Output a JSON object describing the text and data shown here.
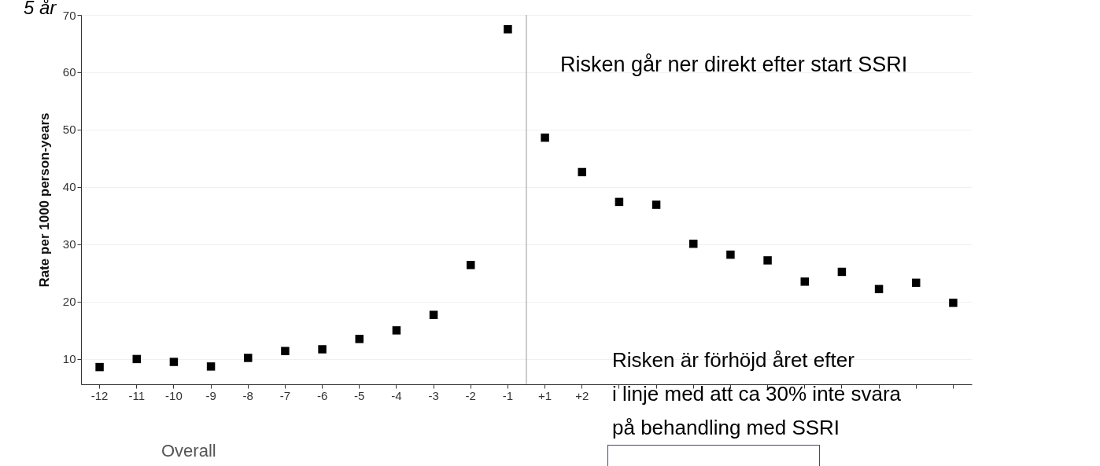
{
  "chart_data": {
    "type": "scatter",
    "xlabel": "Overall",
    "ylabel": "Rate per 1000 person-years",
    "categories": [
      "-12",
      "-11",
      "-10",
      "-9",
      "-8",
      "-7",
      "-6",
      "-5",
      "-4",
      "-3",
      "-2",
      "-1",
      "+1",
      "+2",
      null,
      null,
      null,
      null,
      null,
      null,
      null,
      null,
      null,
      null
    ],
    "series": [
      {
        "color": "#000000",
        "values": [
          8.6,
          10.0,
          9.5,
          8.7,
          10.2,
          11.4,
          11.7,
          13.5,
          15.0,
          17.7,
          26.4,
          67.5,
          48.6,
          42.6,
          37.4,
          36.9,
          30.1,
          28.2,
          27.2,
          23.5,
          25.2,
          22.2,
          23.3,
          19.8
        ]
      }
    ],
    "ylim": [
      5.6,
      70
    ],
    "yticks": [
      10,
      20,
      30,
      40,
      50,
      60,
      70
    ],
    "grid": "y",
    "marker": "square",
    "ref_lines": [
      {
        "axis": "x",
        "value": "-1",
        "color": "#aaaaaa"
      }
    ],
    "annotations": [
      "5 år",
      "Risken går ner direkt efter start SSRI",
      "Risken är förhöjd året efter\ni linje med att ca 30% inte svara\npå behandling med SSRI"
    ]
  }
}
